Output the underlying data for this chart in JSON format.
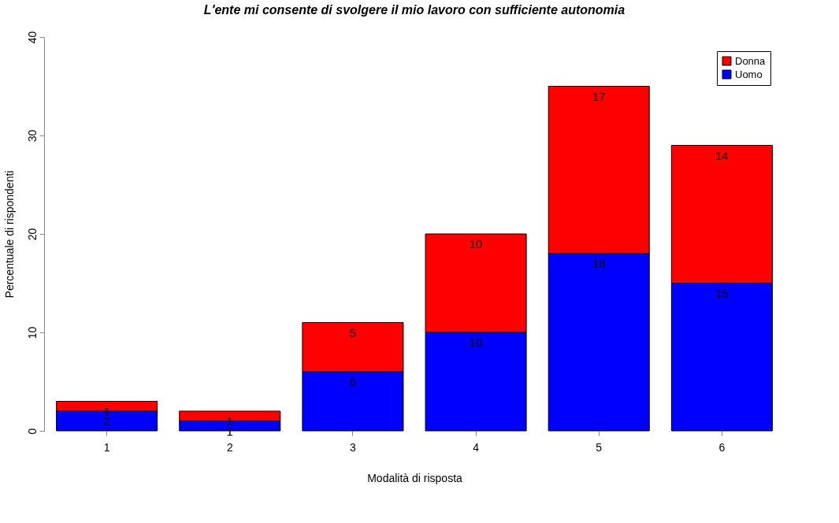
{
  "chart_data": {
    "type": "bar",
    "title": "L'ente mi consente di svolgere il mio lavoro con sufficiente autonomia",
    "xlabel": "Modalità di risposta",
    "ylabel": "Percentuale di rispondenti",
    "categories": [
      "1",
      "2",
      "3",
      "4",
      "5",
      "6"
    ],
    "stacked": true,
    "series": [
      {
        "name": "Uomo",
        "color": "#0000ff",
        "values": [
          2,
          1,
          6,
          10,
          18,
          15
        ]
      },
      {
        "name": "Donna",
        "color": "#ff0000",
        "values": [
          1,
          1,
          5,
          10,
          17,
          14
        ]
      }
    ],
    "ylim": [
      0,
      40
    ],
    "yticks": [
      0,
      10,
      20,
      30,
      40
    ],
    "grid": false,
    "legend": "top right",
    "data_labels": true
  }
}
